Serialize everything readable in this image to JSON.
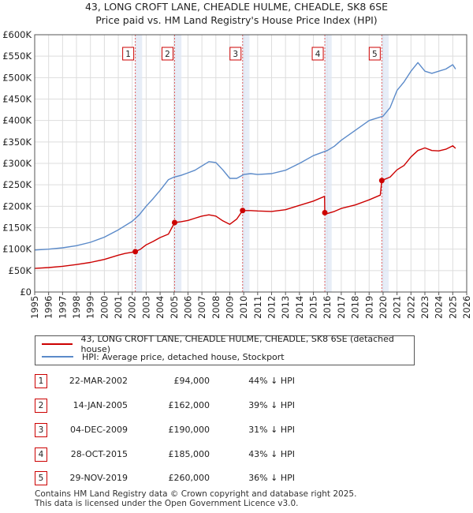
{
  "colors": {
    "property": "#cc0000",
    "hpi": "#5b8ac9",
    "sale_band": "#dde6f4",
    "grid": "#dddddd",
    "vline": "#e06060"
  },
  "chart_data": {
    "type": "line",
    "title": "43, LONG CROFT LANE, CHEADLE HULME, CHEADLE, SK8 6SE",
    "subtitle": "Price paid vs. HM Land Registry's House Price Index (HPI)",
    "xlim": [
      1995,
      2026
    ],
    "ylim": [
      0,
      600000
    ],
    "yticks": [
      {
        "value": 0,
        "label": "£0"
      },
      {
        "value": 50000,
        "label": "£50K"
      },
      {
        "value": 100000,
        "label": "£100K"
      },
      {
        "value": 150000,
        "label": "£150K"
      },
      {
        "value": 200000,
        "label": "£200K"
      },
      {
        "value": 250000,
        "label": "£250K"
      },
      {
        "value": 300000,
        "label": "£300K"
      },
      {
        "value": 350000,
        "label": "£350K"
      },
      {
        "value": 400000,
        "label": "£400K"
      },
      {
        "value": 450000,
        "label": "£450K"
      },
      {
        "value": 500000,
        "label": "£500K"
      },
      {
        "value": 550000,
        "label": "£550K"
      },
      {
        "value": 600000,
        "label": "£600K"
      }
    ],
    "xticks": [
      "1995",
      "1996",
      "1997",
      "1998",
      "1999",
      "2000",
      "2001",
      "2002",
      "2003",
      "2004",
      "2005",
      "2006",
      "2007",
      "2008",
      "2009",
      "2010",
      "2011",
      "2012",
      "2013",
      "2014",
      "2015",
      "2016",
      "2017",
      "2018",
      "2019",
      "2020",
      "2021",
      "2022",
      "2023",
      "2024",
      "2025",
      "2026"
    ],
    "series": [
      {
        "name": "43, LONG CROFT LANE, CHEADLE HULME, CHEADLE, SK8 6SE (detached house)",
        "color": "#cc0000",
        "x": [
          1995,
          1996,
          1997,
          1998,
          1999,
          2000,
          2001,
          2001.5,
          2002.22,
          2002.6,
          2003,
          2003.5,
          2004,
          2004.6,
          2005.04,
          2005.5,
          2006,
          2006.5,
          2007,
          2007.5,
          2008,
          2008.5,
          2009,
          2009.5,
          2009.92,
          2010.5,
          2011,
          2012,
          2013,
          2014,
          2015,
          2015.8,
          2015.82,
          2016,
          2016.5,
          2017,
          2018,
          2019,
          2019.8,
          2019.91,
          2020.5,
          2021,
          2021.5,
          2022,
          2022.5,
          2023,
          2023.5,
          2024,
          2024.5,
          2025,
          2025.2
        ],
        "y": [
          55000,
          57000,
          60000,
          64000,
          69000,
          76000,
          86000,
          90000,
          94000,
          100000,
          110000,
          118000,
          127000,
          135000,
          162000,
          164000,
          167000,
          172000,
          177000,
          180000,
          177000,
          166000,
          158000,
          170000,
          190000,
          190000,
          189000,
          188000,
          192000,
          202000,
          212000,
          223000,
          185000,
          183000,
          188000,
          195000,
          203000,
          215000,
          226000,
          260000,
          268000,
          285000,
          295000,
          315000,
          330000,
          336000,
          330000,
          329000,
          333000,
          341000,
          335000
        ]
      },
      {
        "name": "HPI: Average price, detached house, Stockport",
        "color": "#5b8ac9",
        "x": [
          1995,
          1996,
          1997,
          1998,
          1999,
          2000,
          2001,
          2002,
          2002.5,
          2003,
          2003.5,
          2004,
          2004.6,
          2005,
          2005.5,
          2006,
          2006.5,
          2007,
          2007.5,
          2008,
          2008.5,
          2009,
          2009.5,
          2010,
          2010.5,
          2011,
          2012,
          2013,
          2014,
          2015,
          2016,
          2016.5,
          2017,
          2018,
          2019,
          2019.5,
          2020,
          2020.5,
          2021,
          2021.5,
          2022,
          2022.5,
          2023,
          2023.5,
          2024,
          2024.5,
          2025,
          2025.2
        ],
        "y": [
          98000,
          100000,
          103000,
          108000,
          116000,
          128000,
          145000,
          165000,
          180000,
          200000,
          218000,
          237000,
          262000,
          268000,
          272000,
          278000,
          284000,
          294000,
          304000,
          302000,
          285000,
          265000,
          265000,
          274000,
          276000,
          274000,
          276000,
          284000,
          300000,
          318000,
          330000,
          340000,
          354000,
          377000,
          400000,
          405000,
          410000,
          430000,
          470000,
          490000,
          515000,
          535000,
          515000,
          510000,
          515000,
          520000,
          530000,
          520000
        ]
      }
    ],
    "sales": [
      {
        "n": "1",
        "x": 2002.22,
        "price": 94000
      },
      {
        "n": "2",
        "x": 2005.04,
        "price": 162000
      },
      {
        "n": "3",
        "x": 2009.92,
        "price": 190000
      },
      {
        "n": "4",
        "x": 2015.82,
        "price": 185000
      },
      {
        "n": "5",
        "x": 2019.91,
        "price": 260000
      }
    ]
  },
  "legend": {
    "property": "43, LONG CROFT LANE, CHEADLE HULME, CHEADLE, SK8 6SE (detached house)",
    "hpi": "HPI: Average price, detached house, Stockport"
  },
  "sales_table": [
    {
      "n": "1",
      "date": "22-MAR-2002",
      "price": "£94,000",
      "hpi": "44% ↓ HPI"
    },
    {
      "n": "2",
      "date": "14-JAN-2005",
      "price": "£162,000",
      "hpi": "39% ↓ HPI"
    },
    {
      "n": "3",
      "date": "04-DEC-2009",
      "price": "£190,000",
      "hpi": "31% ↓ HPI"
    },
    {
      "n": "4",
      "date": "28-OCT-2015",
      "price": "£185,000",
      "hpi": "43% ↓ HPI"
    },
    {
      "n": "5",
      "date": "29-NOV-2019",
      "price": "£260,000",
      "hpi": "36% ↓ HPI"
    }
  ],
  "footer": {
    "line1": "Contains HM Land Registry data © Crown copyright and database right 2025.",
    "line2": "This data is licensed under the Open Government Licence v3.0."
  }
}
